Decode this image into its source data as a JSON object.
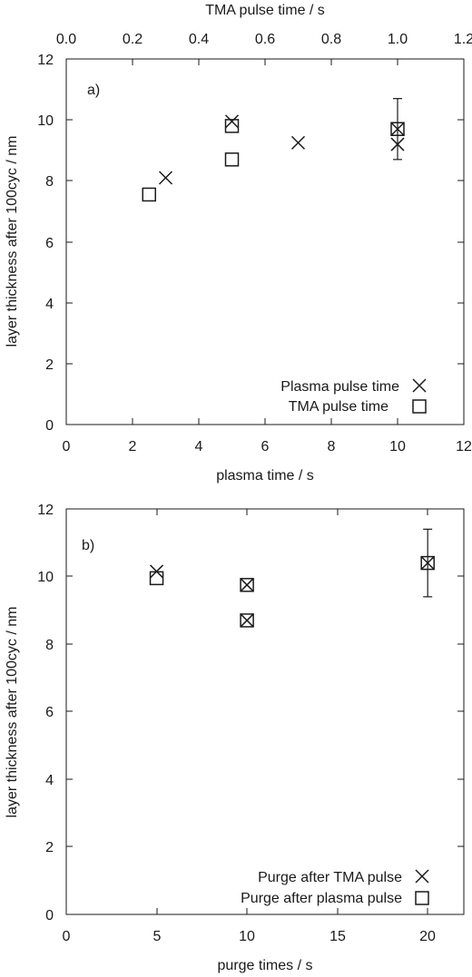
{
  "chart_data": [
    {
      "type": "scatter",
      "panel_label": "a)",
      "xlabel": "plasma time / s",
      "x2label": "TMA pulse time / s",
      "ylabel": "layer thickness after 100cyc / nm",
      "xlim": [
        0,
        12
      ],
      "x2lim": [
        0,
        1.2
      ],
      "ylim": [
        0,
        12
      ],
      "xticks": [
        "0",
        "2",
        "4",
        "6",
        "8",
        "10",
        "12"
      ],
      "x2ticks": [
        "0.0",
        "0.2",
        "0.4",
        "0.6",
        "0.8",
        "1.0",
        "1.2"
      ],
      "yticks": [
        "0",
        "2",
        "4",
        "6",
        "8",
        "10",
        "12"
      ],
      "legend_position": "bottom-right",
      "series": [
        {
          "name": "Plasma pulse time",
          "marker": "x",
          "axis": "bottom",
          "points": [
            {
              "x": 3,
              "y": 8.1
            },
            {
              "x": 5,
              "y": 9.95
            },
            {
              "x": 7,
              "y": 9.25
            },
            {
              "x": 10,
              "y": 9.2
            },
            {
              "x": 10,
              "y": 9.7
            }
          ]
        },
        {
          "name": "TMA pulse time",
          "marker": "square",
          "axis": "top",
          "points": [
            {
              "x": 0.25,
              "y": 7.55
            },
            {
              "x": 0.5,
              "y": 8.7
            },
            {
              "x": 0.5,
              "y": 9.8
            },
            {
              "x": 1.0,
              "y": 9.7
            }
          ]
        }
      ],
      "error_bars": [
        {
          "x": 10,
          "low": 8.7,
          "high": 10.7
        }
      ]
    },
    {
      "type": "scatter",
      "panel_label": "b)",
      "xlabel": "purge times / s",
      "ylabel": "layer thickness after 100cyc / nm",
      "xlim": [
        0,
        22
      ],
      "ylim": [
        0,
        12
      ],
      "xticks": [
        "0",
        "5",
        "10",
        "15",
        "20"
      ],
      "yticks": [
        "0",
        "2",
        "4",
        "6",
        "8",
        "10",
        "12"
      ],
      "legend_position": "bottom-right",
      "series": [
        {
          "name": "Purge after TMA pulse",
          "marker": "x",
          "axis": "bottom",
          "points": [
            {
              "x": 5,
              "y": 10.15
            },
            {
              "x": 10,
              "y": 9.75
            },
            {
              "x": 10,
              "y": 8.7
            },
            {
              "x": 20,
              "y": 10.4
            }
          ]
        },
        {
          "name": "Purge after plasma pulse",
          "marker": "square",
          "axis": "bottom",
          "points": [
            {
              "x": 5,
              "y": 9.95
            },
            {
              "x": 10,
              "y": 9.75
            },
            {
              "x": 10,
              "y": 8.7
            },
            {
              "x": 20,
              "y": 10.4
            }
          ]
        }
      ],
      "error_bars": [
        {
          "x": 20,
          "low": 9.4,
          "high": 11.4
        }
      ]
    }
  ]
}
